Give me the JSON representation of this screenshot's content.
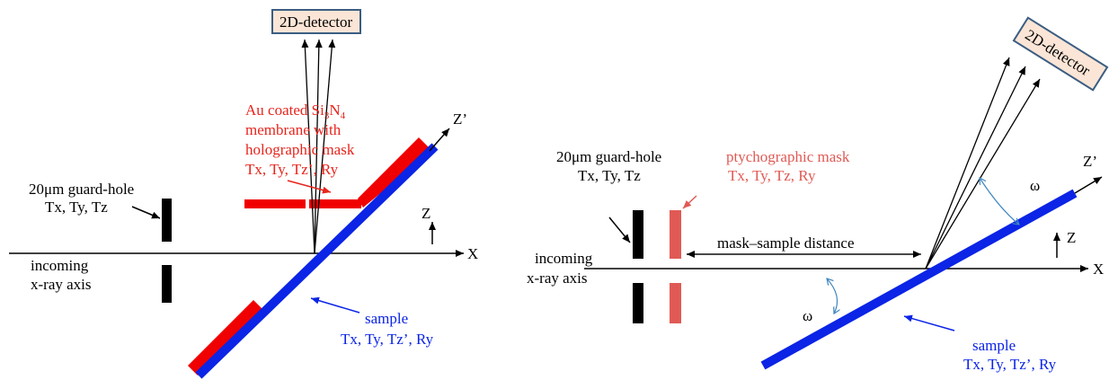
{
  "left": {
    "detector_label": "2D-detector",
    "mask_title_1": "Au coated Si",
    "mask_title_sub1": "3",
    "mask_title_mid": "N",
    "mask_title_sub2": "4",
    "mask_line2": "membrane with",
    "mask_line3": "holographic mask",
    "mask_dof": "Tx, Ty, Tz’, Ry",
    "guard_title": "20μm guard-hole",
    "guard_dof": "Tx, Ty, Tz",
    "incoming_1": "incoming",
    "incoming_2": "x-ray axis",
    "sample_title": "sample",
    "sample_dof": "Tx, Ty, Tz’, Ry",
    "axis_x": "X",
    "axis_z": "Z",
    "axis_zp": "Z’"
  },
  "right": {
    "detector_label": "2D-detector",
    "mask_title": "ptychographic mask",
    "mask_dof": "Tx, Ty, Tz, Ry",
    "guard_title": "20μm guard-hole",
    "guard_dof": "Tx, Ty, Tz",
    "incoming_1": "incoming",
    "incoming_2": "x-ray axis",
    "distance_label": "mask–sample distance",
    "omega_1": "ω",
    "omega_2": "ω",
    "sample_title": "sample",
    "sample_dof": "Tx, Ty, Tz’, Ry",
    "axis_x": "X",
    "axis_z": "Z",
    "axis_zp": "Z’"
  },
  "colors": {
    "red": "#f00000",
    "blue": "#0b24e6",
    "salmon": "#e05a55",
    "detector_fill": "#fbe5d6",
    "detector_border": "#3b5e82"
  }
}
